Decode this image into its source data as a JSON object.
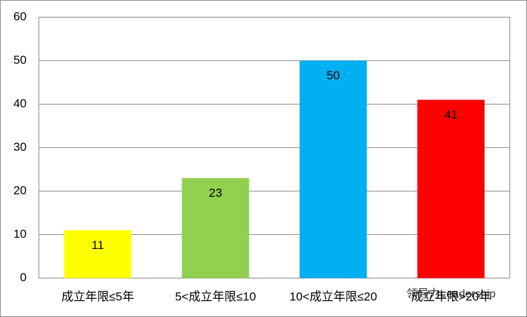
{
  "chart_data": {
    "type": "bar",
    "categories": [
      "成立年限≤5年",
      "5<成立年限≤10",
      "10<成立年限≤20",
      "成立年限>20年"
    ],
    "values": [
      11,
      23,
      50,
      41
    ],
    "colors": [
      "#ffff00",
      "#92d050",
      "#00b0f0",
      "#ff0000"
    ],
    "ylim": [
      0,
      60
    ],
    "yticks": [
      0,
      10,
      20,
      30,
      40,
      50,
      60
    ],
    "grid": true,
    "watermark": "领导力Leadership"
  }
}
